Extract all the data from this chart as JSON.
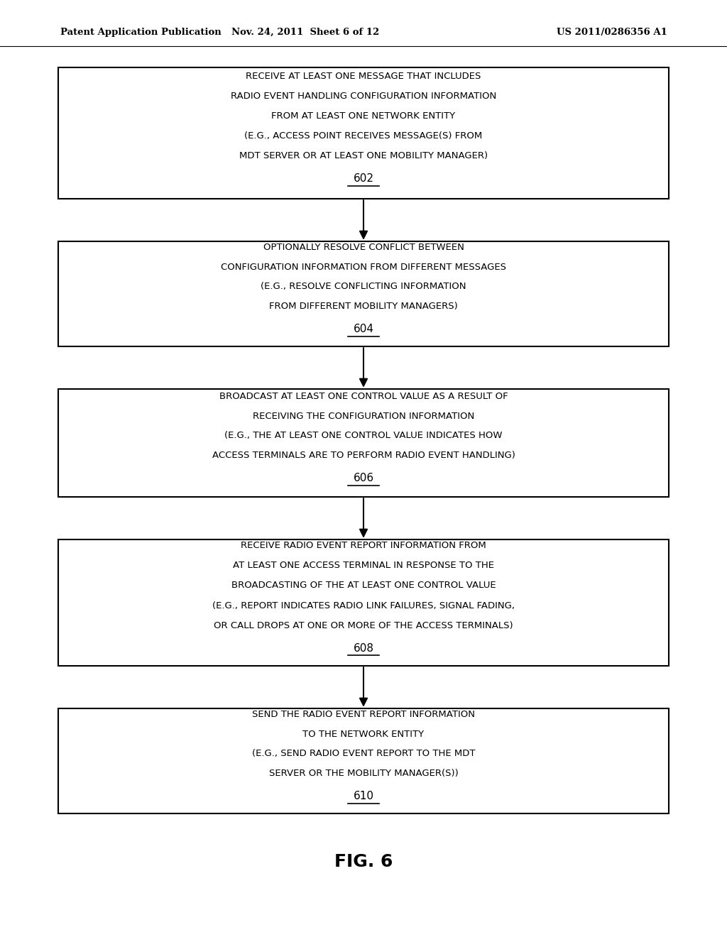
{
  "title": "FIG. 6",
  "header_left": "Patent Application Publication",
  "header_center": "Nov. 24, 2011  Sheet 6 of 12",
  "header_right": "US 2011/0286356 A1",
  "background_color": "#ffffff",
  "boxes": [
    {
      "id": "602",
      "lines": [
        "RECEIVE AT LEAST ONE MESSAGE THAT INCLUDES",
        "RADIO EVENT HANDLING CONFIGURATION INFORMATION",
        "FROM AT LEAST ONE NETWORK ENTITY",
        "(E.G., ACCESS POINT RECEIVES MESSAGE(S) FROM",
        "MDT SERVER OR AT LEAST ONE MOBILITY MANAGER)"
      ],
      "label": "602"
    },
    {
      "id": "604",
      "lines": [
        "OPTIONALLY RESOLVE CONFLICT BETWEEN",
        "CONFIGURATION INFORMATION FROM DIFFERENT MESSAGES",
        "(E.G., RESOLVE CONFLICTING INFORMATION",
        "FROM DIFFERENT MOBILITY MANAGERS)"
      ],
      "label": "604"
    },
    {
      "id": "606",
      "lines": [
        "BROADCAST AT LEAST ONE CONTROL VALUE AS A RESULT OF",
        "RECEIVING THE CONFIGURATION INFORMATION",
        "(E.G., THE AT LEAST ONE CONTROL VALUE INDICATES HOW",
        "ACCESS TERMINALS ARE TO PERFORM RADIO EVENT HANDLING)"
      ],
      "label": "606"
    },
    {
      "id": "608",
      "lines": [
        "RECEIVE RADIO EVENT REPORT INFORMATION FROM",
        "AT LEAST ONE ACCESS TERMINAL IN RESPONSE TO THE",
        "BROADCASTING OF THE AT LEAST ONE CONTROL VALUE",
        "(E.G., REPORT INDICATES RADIO LINK FAILURES, SIGNAL FADING,",
        "OR CALL DROPS AT ONE OR MORE OF THE ACCESS TERMINALS)"
      ],
      "label": "608"
    },
    {
      "id": "610",
      "lines": [
        "SEND THE RADIO EVENT REPORT INFORMATION",
        "TO THE NETWORK ENTITY",
        "(E.G., SEND RADIO EVENT REPORT TO THE MDT",
        "SERVER OR THE MOBILITY MANAGER(S))"
      ],
      "label": "610"
    }
  ],
  "box_edge_color": "#000000",
  "box_face_color": "#ffffff",
  "text_color": "#000000",
  "arrow_color": "#000000",
  "font_size": 9.5,
  "label_font_size": 11
}
